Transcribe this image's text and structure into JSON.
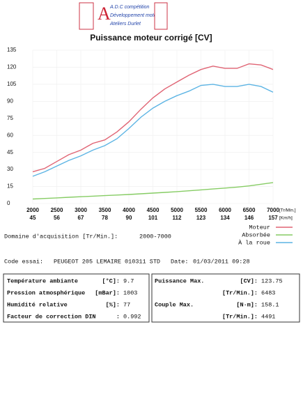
{
  "header": {
    "logo_lines": [
      "A.D.C compétition",
      "Développement moteur",
      "Ateliers Durlet"
    ]
  },
  "chart_data": {
    "type": "line",
    "title": "Puissance moteur corrigé [CV]",
    "x": [
      2000,
      2250,
      2500,
      2750,
      3000,
      3250,
      3500,
      3750,
      4000,
      4250,
      4500,
      4750,
      5000,
      5250,
      5500,
      5750,
      6000,
      6250,
      6500,
      6750,
      7000
    ],
    "series": [
      {
        "name": "Moteur",
        "color": "#e06474",
        "values": [
          28,
          31,
          37,
          43,
          47,
          53,
          56,
          63,
          72,
          83,
          93,
          101,
          107,
          113,
          118,
          121,
          119,
          119,
          123,
          122,
          118
        ]
      },
      {
        "name": "Absorbée",
        "color": "#86cc64",
        "values": [
          4,
          4.5,
          5,
          5.5,
          6,
          6.5,
          7,
          7.5,
          8,
          8.6,
          9.2,
          9.8,
          10.5,
          11.2,
          12,
          12.8,
          13.6,
          14.5,
          15.5,
          17,
          18.5
        ]
      },
      {
        "name": "À la roue",
        "color": "#5cb4e4",
        "values": [
          24,
          28,
          33,
          38,
          42,
          47,
          51,
          57,
          66,
          76,
          84,
          90,
          95,
          99,
          104,
          105,
          103,
          103,
          105,
          103,
          98
        ]
      }
    ],
    "xlim": [
      2000,
      7000
    ],
    "xticks": [
      2000,
      2500,
      3000,
      3500,
      4000,
      4500,
      5000,
      5500,
      6000,
      6500,
      7000
    ],
    "speed_labels": [
      45,
      56,
      67,
      78,
      90,
      101,
      112,
      123,
      134,
      146,
      157
    ],
    "x_unit": "[Tr/Min.]",
    "speed_unit": "[Km/h]",
    "ylim": [
      0,
      135
    ],
    "yticks": [
      0,
      15,
      30,
      45,
      60,
      75,
      90,
      105,
      120,
      135
    ],
    "grid": true
  },
  "acquisition": {
    "label": "Domaine d'acquisition [Tr/Min.]:",
    "value": "2000-7000"
  },
  "test": {
    "label": "Code essai:",
    "value": "PEUGEOT 205 LEMAIRE 010311 STD",
    "date_label": "Date:",
    "date": "01/03/2011 09:28"
  },
  "conditions": [
    [
      "Température ambiante",
      "[°C]:",
      "9.7"
    ],
    [
      "Pression atmosphérique",
      "[mBar]:",
      "1003"
    ],
    [
      "Humidité relative",
      "[%]:",
      "77"
    ],
    [
      "Facteur de correction DIN",
      ":",
      "0.992"
    ]
  ],
  "results": [
    [
      "Puissance Max.",
      "[CV]:",
      "123.75"
    ],
    [
      "",
      "[Tr/Min.]:",
      "6483"
    ],
    [
      "Couple Max.",
      "[N·m]:",
      "158.1"
    ],
    [
      "",
      "[Tr/Min.]:",
      "4491"
    ]
  ]
}
